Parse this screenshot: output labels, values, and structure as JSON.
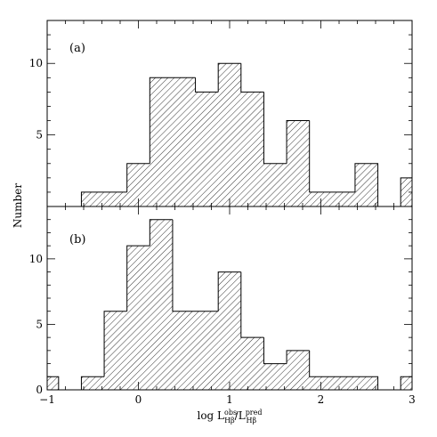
{
  "chart_data": {
    "type": "histogram",
    "ylabel": "Number",
    "xlabel": {
      "prefix": "log L",
      "num_sup": "obs",
      "num_sub": "Hβ",
      "slash": "/L",
      "den_sup": "pred",
      "den_sub": "Hβ"
    },
    "xlim": [
      -1,
      3
    ],
    "x_ticks": [
      "-1",
      "0",
      "1",
      "2",
      "3"
    ],
    "bin_edges": [
      -1.0,
      -0.875,
      -0.625,
      -0.375,
      -0.125,
      0.125,
      0.375,
      0.625,
      0.875,
      1.125,
      1.375,
      1.625,
      1.875,
      2.125,
      2.375,
      2.625,
      2.875,
      3.0
    ],
    "hatch": "diagonal",
    "panels": [
      {
        "label": "(a)",
        "ylim": [
          0,
          13
        ],
        "y_ticks": [
          "5",
          "10"
        ],
        "counts": [
          0,
          0,
          1,
          1,
          3,
          9,
          9,
          8,
          10,
          8,
          3,
          6,
          1,
          1,
          3,
          0,
          2
        ]
      },
      {
        "label": "(b)",
        "ylim": [
          0,
          14
        ],
        "y_ticks": [
          "0",
          "5",
          "10"
        ],
        "counts": [
          1,
          0,
          1,
          6,
          11,
          13,
          6,
          6,
          9,
          4,
          2,
          3,
          1,
          1,
          1,
          0,
          1
        ]
      }
    ]
  }
}
